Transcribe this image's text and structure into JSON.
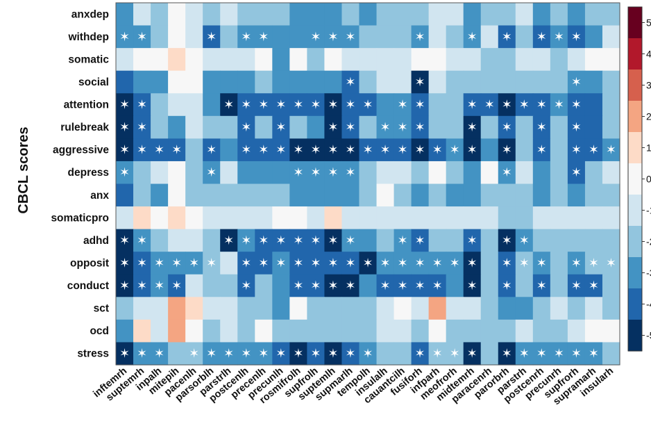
{
  "chart_data": {
    "type": "heatmap",
    "ylabel": "CBCL scores",
    "rows": [
      "anxdep",
      "withdep",
      "somatic",
      "social",
      "attention",
      "rulebreak",
      "aggressive",
      "depress",
      "anx",
      "somaticpro",
      "adhd",
      "opposit",
      "conduct",
      "sct",
      "ocd",
      "stress"
    ],
    "columns": [
      "inftemrh",
      "suptemrh",
      "inpalh",
      "mitepih",
      "pacenlh",
      "parsorblh",
      "parstrlh",
      "postcenlh",
      "precenlh",
      "precunlh",
      "rosmifrolh",
      "supfrolh",
      "suptemlh",
      "supmarlh",
      "tempolh",
      "insulalh",
      "cauantcilh",
      "fusiforh",
      "infparh",
      "meofrorh",
      "midtemrh",
      "paracenrh",
      "parorbrh",
      "parstrh",
      "postcenrh",
      "precunrh",
      "supfrorh",
      "supramarh",
      "insularh"
    ],
    "values": [
      [
        -3,
        -1,
        -2,
        0,
        -1,
        -2,
        -1,
        -2,
        -2,
        -2,
        -3,
        -3,
        -3,
        -2,
        -3,
        -2,
        -2,
        -2,
        -1,
        -1,
        -3,
        -2,
        -2,
        -1,
        -3,
        -2,
        -3,
        -2,
        -2
      ],
      [
        -3,
        -3,
        -2,
        0,
        -1,
        -4,
        -2,
        -3,
        -3,
        -3,
        -3,
        -3,
        -3,
        -3,
        -2,
        -2,
        -2,
        -3,
        -1,
        -2,
        -3,
        -1,
        -4,
        -2,
        -4,
        -3,
        -4,
        -3,
        -1
      ],
      [
        -1,
        0,
        0,
        1,
        0,
        -1,
        -1,
        -1,
        0,
        -3,
        0,
        -2,
        0,
        -1,
        -1,
        -1,
        -1,
        0,
        0,
        -1,
        -1,
        -2,
        -2,
        -1,
        -1,
        -2,
        -1,
        0,
        0
      ],
      [
        -4,
        -3,
        -3,
        0,
        0,
        -3,
        -3,
        -3,
        -2,
        -3,
        -3,
        -3,
        -3,
        -4,
        -2,
        -1,
        -1,
        -5,
        -1,
        -2,
        -2,
        -2,
        -2,
        -2,
        -2,
        -2,
        -3,
        -3,
        -2
      ],
      [
        -5,
        -4,
        -2,
        -1,
        -1,
        -3,
        -5,
        -4,
        -4,
        -4,
        -4,
        -4,
        -5,
        -4,
        -4,
        -3,
        -3,
        -4,
        -2,
        -2,
        -4,
        -4,
        -5,
        -4,
        -4,
        -3,
        -4,
        -4,
        -2
      ],
      [
        -5,
        -4,
        -2,
        -3,
        -1,
        -2,
        -2,
        -4,
        -2,
        -4,
        -2,
        -3,
        -5,
        -4,
        -2,
        -3,
        -3,
        -4,
        -2,
        -2,
        -5,
        -2,
        -4,
        -2,
        -4,
        -2,
        -4,
        -4,
        -2
      ],
      [
        -5,
        -4,
        -4,
        -4,
        -2,
        -4,
        -3,
        -4,
        -4,
        -4,
        -5,
        -5,
        -5,
        -5,
        -4,
        -4,
        -4,
        -5,
        -4,
        -3,
        -5,
        -3,
        -5,
        -2,
        -4,
        -2,
        -4,
        -4,
        -3
      ],
      [
        -3,
        -2,
        -1,
        0,
        -2,
        -3,
        -1,
        -3,
        -3,
        -3,
        -3,
        -3,
        -3,
        -3,
        -2,
        -1,
        -1,
        -2,
        0,
        -2,
        -3,
        0,
        -3,
        -1,
        -3,
        -2,
        -4,
        -2,
        -1
      ],
      [
        -4,
        -2,
        -3,
        0,
        -2,
        -2,
        -2,
        -2,
        -2,
        -2,
        -3,
        -3,
        -3,
        -3,
        -2,
        0,
        -2,
        -3,
        -2,
        -3,
        -3,
        -2,
        -2,
        -2,
        -3,
        -2,
        -3,
        -2,
        -2
      ],
      [
        -1,
        1,
        0,
        1,
        0,
        -1,
        -1,
        -1,
        -1,
        0,
        0,
        -1,
        1,
        -1,
        -1,
        -1,
        -1,
        -1,
        -1,
        -1,
        -1,
        -1,
        -2,
        -2,
        -1,
        -1,
        -1,
        -1,
        -1
      ],
      [
        -5,
        -3,
        -2,
        -1,
        -1,
        -2,
        -5,
        -3,
        -4,
        -4,
        -4,
        -4,
        -5,
        -3,
        -3,
        -2,
        -3,
        -4,
        -2,
        -2,
        -4,
        -2,
        -5,
        -3,
        -2,
        -2,
        -2,
        -2,
        -2
      ],
      [
        -5,
        -4,
        -3,
        -3,
        -3,
        -2,
        -1,
        -4,
        -4,
        -3,
        -4,
        -4,
        -4,
        -4,
        -5,
        -3,
        -3,
        -3,
        -3,
        -3,
        -5,
        -2,
        -4,
        -2,
        -3,
        -2,
        -3,
        -2,
        -2
      ],
      [
        -5,
        -4,
        -3,
        -4,
        -1,
        -2,
        -2,
        -4,
        -2,
        -3,
        -4,
        -4,
        -5,
        -5,
        -3,
        -4,
        -4,
        -4,
        -4,
        -3,
        -5,
        -2,
        -4,
        -2,
        -4,
        -2,
        -4,
        -4,
        -2
      ],
      [
        -2,
        -1,
        -1,
        2,
        1,
        -1,
        -1,
        -2,
        -2,
        -3,
        0,
        -2,
        -2,
        -2,
        -2,
        -1,
        0,
        -1,
        2,
        -1,
        -1,
        -2,
        -3,
        -3,
        -2,
        -1,
        -2,
        -1,
        -2
      ],
      [
        -3,
        1,
        -1,
        2,
        0,
        -2,
        -1,
        -2,
        0,
        -2,
        -2,
        -2,
        -2,
        -2,
        -2,
        -1,
        -1,
        -2,
        0,
        -2,
        -2,
        -2,
        -2,
        -1,
        -2,
        -2,
        -1,
        0,
        0
      ],
      [
        -5,
        -3,
        -3,
        -2,
        -2,
        -3,
        -3,
        -3,
        -3,
        -4,
        -5,
        -4,
        -5,
        -4,
        -3,
        -2,
        -2,
        -4,
        -2,
        -2,
        -5,
        -2,
        -5,
        -3,
        -3,
        -3,
        -3,
        -3,
        -2
      ]
    ],
    "significant": [
      [],
      [
        0,
        1,
        5,
        7,
        8,
        11,
        12,
        13,
        17,
        20,
        22,
        24,
        25,
        26
      ],
      [],
      [
        13,
        17,
        26
      ],
      [
        0,
        1,
        6,
        7,
        8,
        9,
        10,
        11,
        12,
        13,
        14,
        16,
        17,
        20,
        21,
        22,
        23,
        24,
        25,
        26
      ],
      [
        0,
        1,
        7,
        9,
        12,
        13,
        15,
        16,
        17,
        20,
        22,
        24,
        26
      ],
      [
        0,
        1,
        2,
        3,
        5,
        7,
        8,
        9,
        10,
        11,
        12,
        13,
        14,
        15,
        16,
        17,
        18,
        19,
        20,
        22,
        24,
        26,
        27,
        28
      ],
      [
        0,
        5,
        10,
        11,
        12,
        13,
        22,
        26
      ],
      [],
      [],
      [
        0,
        1,
        6,
        7,
        8,
        9,
        10,
        11,
        12,
        13,
        16,
        17,
        20,
        22,
        23
      ],
      [
        0,
        1,
        2,
        3,
        4,
        5,
        7,
        8,
        9,
        10,
        11,
        12,
        13,
        14,
        15,
        16,
        17,
        18,
        19,
        20,
        22,
        23,
        24,
        26,
        27,
        28
      ],
      [
        0,
        1,
        2,
        3,
        7,
        10,
        11,
        12,
        13,
        15,
        16,
        17,
        18,
        20,
        22,
        24,
        26,
        27
      ],
      [],
      [],
      [
        0,
        1,
        2,
        4,
        5,
        6,
        7,
        8,
        9,
        10,
        11,
        12,
        13,
        14,
        17,
        18,
        19,
        20,
        22,
        23,
        24,
        25,
        26,
        27
      ]
    ],
    "significance_marker": "✶",
    "colorbar": {
      "range": [
        -5,
        5
      ],
      "ticks": [
        "5",
        "4",
        "3",
        "2",
        "1",
        "0",
        "-1",
        "-2",
        "-3",
        "-4",
        "-5"
      ],
      "colors": {
        "5": "#67001f",
        "4": "#b2182b",
        "3": "#d6604d",
        "2": "#f4a582",
        "1": "#fddbc7",
        "0": "#f7f7f7",
        "-1": "#d1e5f0",
        "-2": "#92c5de",
        "-3": "#4393c3",
        "-4": "#2166ac",
        "-5": "#053061"
      }
    },
    "grid": false
  }
}
